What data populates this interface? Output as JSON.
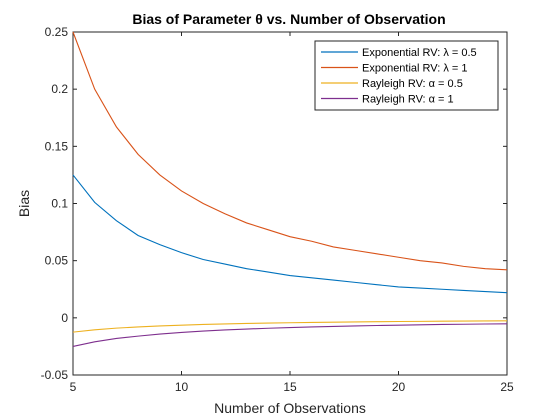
{
  "chart_data": {
    "type": "line",
    "title": "Bias of Parameter θ vs. Number of Observation",
    "xlabel": "Number of Observations",
    "ylabel": "Bias",
    "xlim": [
      5,
      25
    ],
    "ylim": [
      -0.05,
      0.25
    ],
    "xticks": [
      5,
      10,
      15,
      20,
      25
    ],
    "yticks": [
      -0.05,
      0,
      0.05,
      0.1,
      0.15,
      0.2,
      0.25
    ],
    "ytick_labels": [
      "-0.05",
      "0",
      "0.05",
      "0.1",
      "0.15",
      "0.2",
      "0.25"
    ],
    "grid": false,
    "legend_position": "top-right",
    "x": [
      5,
      6,
      7,
      8,
      9,
      10,
      11,
      12,
      13,
      14,
      15,
      16,
      17,
      18,
      19,
      20,
      21,
      22,
      23,
      24,
      25
    ],
    "series": [
      {
        "name": "Exponential RV: λ = 0.5",
        "color": "#0072BD",
        "values": [
          0.125,
          0.101,
          0.085,
          0.072,
          0.064,
          0.057,
          0.051,
          0.047,
          0.043,
          0.04,
          0.037,
          0.035,
          0.033,
          0.031,
          0.029,
          0.027,
          0.026,
          0.025,
          0.024,
          0.023,
          0.022
        ]
      },
      {
        "name": "Exponential RV: λ = 1",
        "color": "#D95319",
        "values": [
          0.25,
          0.2,
          0.167,
          0.143,
          0.125,
          0.111,
          0.1,
          0.091,
          0.083,
          0.077,
          0.071,
          0.067,
          0.062,
          0.059,
          0.056,
          0.053,
          0.05,
          0.048,
          0.045,
          0.043,
          0.042
        ]
      },
      {
        "name": "Rayleigh RV: α = 0.5",
        "color": "#EDB120",
        "values": [
          -0.0125,
          -0.0105,
          -0.009,
          -0.008,
          -0.0071,
          -0.0064,
          -0.0058,
          -0.0053,
          -0.0049,
          -0.0046,
          -0.0043,
          -0.004,
          -0.0038,
          -0.0036,
          -0.0034,
          -0.0032,
          -0.0031,
          -0.0029,
          -0.0028,
          -0.0027,
          -0.0026
        ]
      },
      {
        "name": "Rayleigh RV: α = 1",
        "color": "#7E2F8E",
        "values": [
          -0.025,
          -0.021,
          -0.018,
          -0.016,
          -0.0142,
          -0.0128,
          -0.0116,
          -0.0106,
          -0.0098,
          -0.0091,
          -0.0085,
          -0.008,
          -0.0075,
          -0.0071,
          -0.0067,
          -0.0064,
          -0.0061,
          -0.0058,
          -0.0056,
          -0.0054,
          -0.0052
        ]
      }
    ]
  }
}
